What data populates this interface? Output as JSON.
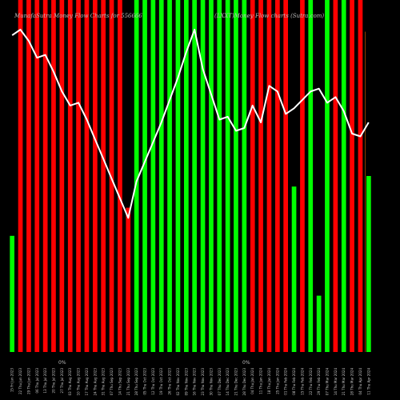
{
  "chart_data": {
    "type": "bar",
    "title": "MunafaSutra Money Flow Charts for 556666",
    "subtitle": "(LXXT)Money Flow charts (Sutra.com)",
    "bottom_labels": [
      "0%",
      "0%"
    ],
    "categories": [
      "15 Fri Jun 2023",
      "22 Thu Jun 2023",
      "29 Thu Jun 2023",
      "06 Thu Jul 2023",
      "13 Thu Jul 2023",
      "20 Thu Jul 2023",
      "27 Thu Jul 2023",
      "03 Thu Aug 2023",
      "10 Thu Aug 2023",
      "17 Thu Aug 2023",
      "24 Thu Aug 2023",
      "31 Thu Aug 2023",
      "07 Thu Sep 2023",
      "14 Thu Sep 2023",
      "21 Thu Sep 2023",
      "28 Thu Sep 2023",
      "05 Thu Oct 2023",
      "12 Thu Oct 2023",
      "19 Thu Oct 2023",
      "26 Thu Oct 2023",
      "02 Thu Nov 2023",
      "09 Thu Nov 2023",
      "16 Thu Nov 2023",
      "23 Thu Nov 2023",
      "30 Thu Nov 2023",
      "07 Thu Dec 2023",
      "14 Thu Dec 2023",
      "21 Thu Dec 2023",
      "28 Thu Dec 2023",
      "04 Thu Jan 2024",
      "11 Thu Jan 2024",
      "18 Thu Jan 2024",
      "25 Thu Jan 2024",
      "01 Thu Feb 2024",
      "08 Thu Feb 2024",
      "15 Thu Feb 2024",
      "22 Thu Feb 2024",
      "29 Thu Feb 2024",
      "07 Thu Mar 2024",
      "14 Thu Mar 2024",
      "21 Thu Mar 2024",
      "28 Thu Mar 2024",
      "04 Thu Apr 2024",
      "11 Thu Apr 2024"
    ],
    "flow_values": [
      33,
      100,
      100,
      100,
      100,
      100,
      100,
      100,
      100,
      100,
      100,
      100,
      100,
      100,
      41,
      100,
      100,
      100,
      100,
      100,
      100,
      100,
      100,
      100,
      100,
      100,
      100,
      100,
      100,
      100,
      100,
      100,
      100,
      100,
      47,
      100,
      100,
      16,
      100,
      100,
      100,
      100,
      100,
      50
    ],
    "flow_direction": [
      "in",
      "out",
      "out",
      "out",
      "out",
      "out",
      "out",
      "out",
      "out",
      "out",
      "out",
      "out",
      "out",
      "out",
      "out",
      "in",
      "in",
      "in",
      "in",
      "in",
      "in",
      "in",
      "in",
      "in",
      "in",
      "in",
      "in",
      "in",
      "in",
      "out",
      "out",
      "out",
      "out",
      "out",
      "in",
      "out",
      "in",
      "in",
      "in",
      "out",
      "in",
      "out",
      "out",
      "in"
    ],
    "dark_flow_values": [
      0,
      0,
      0,
      0,
      0,
      0,
      0,
      0,
      0,
      0,
      0,
      0,
      0,
      0,
      0,
      0,
      0,
      0,
      0,
      0,
      0,
      0,
      0,
      0,
      0,
      0,
      0,
      0,
      0,
      0,
      0,
      0,
      0,
      0,
      0,
      0,
      0,
      0,
      0,
      0,
      0,
      0,
      0,
      91
    ],
    "price_line": [
      100,
      102,
      98,
      92,
      93,
      87,
      80,
      75,
      76,
      70,
      63,
      56,
      49,
      42,
      35,
      48,
      55,
      62,
      69,
      77,
      85,
      94,
      102,
      88,
      79,
      70,
      71,
      66,
      67,
      75,
      69,
      82,
      80,
      72,
      74,
      77,
      80,
      81,
      76,
      78,
      73,
      65,
      64,
      69
    ],
    "y_range": [
      0,
      100
    ],
    "colors": {
      "inflow": "#00ff00",
      "outflow": "#ff0000",
      "dark_flow": "#8b3a00",
      "price": "#ffffff",
      "background": "#000000",
      "text": "#bbbbbb"
    },
    "grid": false,
    "legend": "none"
  }
}
